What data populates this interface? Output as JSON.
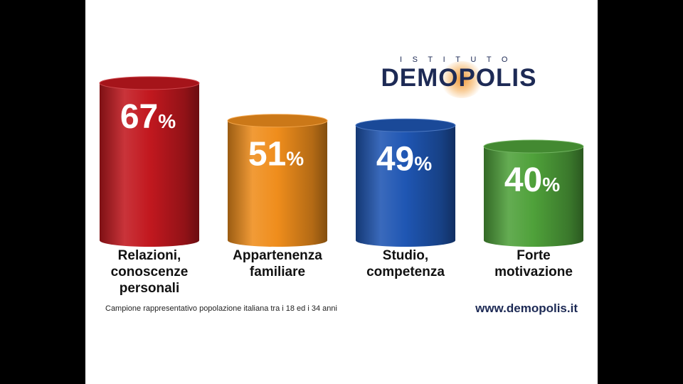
{
  "logo": {
    "top": "ISTITUTO",
    "main": "DEMOPOLIS"
  },
  "chart_data": {
    "type": "bar",
    "categories": [
      [
        "Relazioni,",
        "conoscenze",
        "personali"
      ],
      [
        "Appartenenza",
        "familiare"
      ],
      [
        "Studio,",
        "competenza"
      ],
      [
        "Forte",
        "motivazione"
      ]
    ],
    "values": [
      67,
      51,
      49,
      40
    ],
    "value_labels": [
      "67",
      "51",
      "49",
      "40"
    ],
    "unit": "%",
    "bar_colors": [
      "#c2181f",
      "#ef8d1c",
      "#1f56b3",
      "#4fa13a"
    ],
    "ylim": [
      0,
      100
    ],
    "grid": false,
    "legend": "none"
  },
  "footnote": "Campione rappresentativo popolazione italiana tra i 18 ed i 34 anni",
  "website": "www.demopolis.it"
}
